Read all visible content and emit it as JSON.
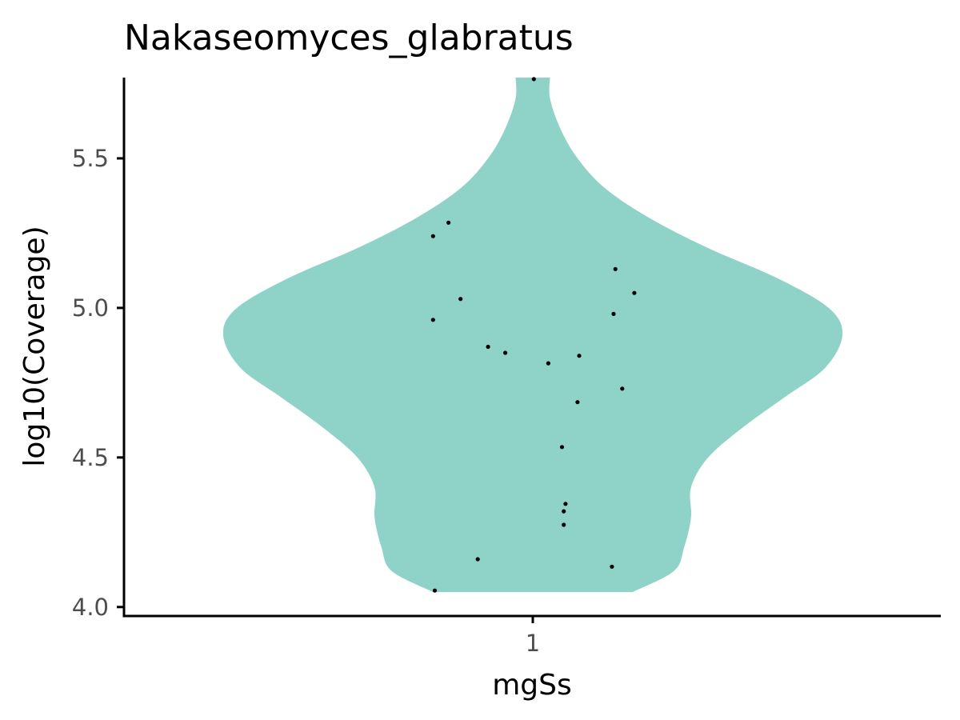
{
  "chart_data": {
    "type": "violin",
    "title": "Nakaseomyces_glabratus",
    "xlabel": "mgSs",
    "ylabel": "log10(Coverage)",
    "categories": [
      "1"
    ],
    "yticks": [
      "4.0",
      "4.5",
      "5.0",
      "5.5"
    ],
    "ytick_values": [
      4.0,
      4.5,
      5.0,
      5.5
    ],
    "ylim": [
      3.97,
      5.77
    ],
    "violin_color": "#8fd3c8",
    "point_color": "#000000",
    "grid": false,
    "violin_range": [
      4.05,
      5.77
    ],
    "violin_half_width": [
      [
        4.05,
        0.29
      ],
      [
        4.12,
        0.41
      ],
      [
        4.2,
        0.44
      ],
      [
        4.3,
        0.46
      ],
      [
        4.4,
        0.46
      ],
      [
        4.5,
        0.51
      ],
      [
        4.6,
        0.61
      ],
      [
        4.7,
        0.73
      ],
      [
        4.8,
        0.85
      ],
      [
        4.91,
        0.9
      ],
      [
        5.0,
        0.86
      ],
      [
        5.1,
        0.71
      ],
      [
        5.2,
        0.51
      ],
      [
        5.3,
        0.34
      ],
      [
        5.4,
        0.21
      ],
      [
        5.5,
        0.13
      ],
      [
        5.6,
        0.08
      ],
      [
        5.7,
        0.05
      ],
      [
        5.77,
        0.05
      ]
    ],
    "points": [
      {
        "x_offset": 0.003,
        "y": 5.765
      },
      {
        "x_offset": -0.245,
        "y": 5.285
      },
      {
        "x_offset": -0.29,
        "y": 5.24
      },
      {
        "x_offset": 0.24,
        "y": 5.13
      },
      {
        "x_offset": 0.295,
        "y": 5.05
      },
      {
        "x_offset": -0.21,
        "y": 5.03
      },
      {
        "x_offset": 0.235,
        "y": 4.98
      },
      {
        "x_offset": -0.29,
        "y": 4.96
      },
      {
        "x_offset": -0.13,
        "y": 4.87
      },
      {
        "x_offset": -0.08,
        "y": 4.85
      },
      {
        "x_offset": 0.135,
        "y": 4.84
      },
      {
        "x_offset": 0.045,
        "y": 4.815
      },
      {
        "x_offset": 0.26,
        "y": 4.73
      },
      {
        "x_offset": 0.13,
        "y": 4.685
      },
      {
        "x_offset": 0.085,
        "y": 4.535
      },
      {
        "x_offset": 0.095,
        "y": 4.345
      },
      {
        "x_offset": 0.09,
        "y": 4.32
      },
      {
        "x_offset": 0.09,
        "y": 4.275
      },
      {
        "x_offset": -0.16,
        "y": 4.16
      },
      {
        "x_offset": 0.23,
        "y": 4.135
      },
      {
        "x_offset": -0.285,
        "y": 4.055
      }
    ]
  }
}
